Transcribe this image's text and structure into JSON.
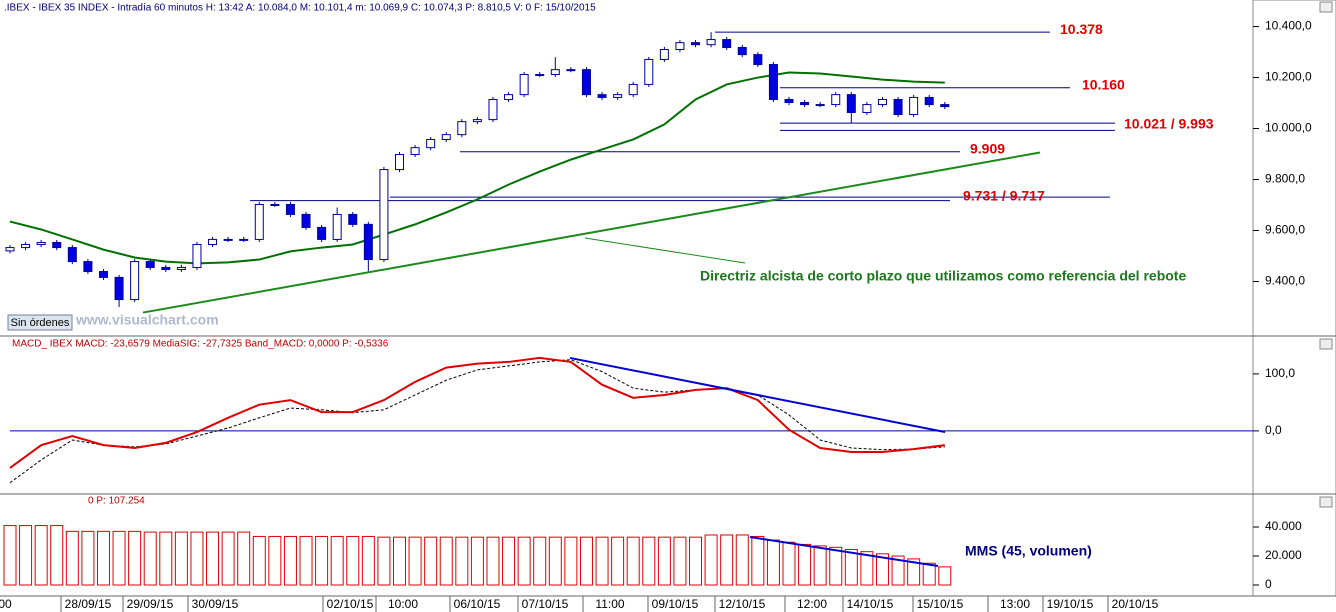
{
  "chart_data": {
    "type": "candlestick",
    "header": ".IBEX - IBEX 35 INDEX - Intradía 60 minutos  H: 13:42  A: 10.084,0  M: 10.101,4  m: 10.069,9  C: 10.074,3  P: 8.810,5  V: 0  F: 15/10/2015",
    "button": "Sin órdenes",
    "watermark": "www.visualchart.com",
    "x_labels": [
      "00",
      "28/09/15",
      "29/09/15",
      "30/09/15",
      "02/10/15",
      "10:00",
      "06/10/15",
      "07/10/15",
      "11:00",
      "09/10/15",
      "12/10/15",
      "12:00",
      "14/10/15",
      "15/10/15",
      "13:00",
      "19/10/15",
      "20/10/15"
    ],
    "up_color": "#ffffff",
    "down_color": "#0000e0",
    "wick_color": "#0000a0",
    "open": [
      9520,
      9533,
      9545,
      9553,
      9533,
      9478,
      9439,
      9416,
      9329,
      9478,
      9455,
      9447,
      9455,
      9545,
      9565,
      9565,
      9565,
      9702,
      9702,
      9663,
      9612,
      9565,
      9663,
      9624,
      9486,
      9839,
      9898,
      9925,
      9957,
      9976,
      10027,
      10035,
      10114,
      10133,
      10212,
      10212,
      10231,
      10231,
      10133,
      10122,
      10133,
      10173,
      10271,
      10310,
      10337,
      10329,
      10349,
      10318,
      10290,
      10251,
      10114,
      10102,
      10094,
      10094,
      10133,
      10063,
      10094,
      10114,
      10055,
      10122,
      10094
    ],
    "high": [
      9543,
      9555,
      9563,
      9563,
      9543,
      9488,
      9449,
      9426,
      9488,
      9488,
      9465,
      9465,
      9555,
      9575,
      9575,
      9575,
      9712,
      9712,
      9712,
      9673,
      9622,
      9690,
      9673,
      9634,
      9849,
      9908,
      9935,
      9967,
      9986,
      10037,
      10045,
      10124,
      10143,
      10222,
      10222,
      10280,
      10241,
      10241,
      10143,
      10143,
      10183,
      10281,
      10320,
      10347,
      10347,
      10378,
      10359,
      10328,
      10300,
      10261,
      10124,
      10112,
      10104,
      10143,
      10143,
      10104,
      10124,
      10124,
      10132,
      10132,
      10104
    ],
    "low": [
      9510,
      9523,
      9535,
      9523,
      9468,
      9429,
      9406,
      9300,
      9319,
      9445,
      9437,
      9437,
      9445,
      9535,
      9555,
      9555,
      9555,
      9692,
      9653,
      9602,
      9555,
      9555,
      9614,
      9440,
      9476,
      9829,
      9888,
      9915,
      9947,
      9966,
      10017,
      10025,
      10104,
      10123,
      10202,
      10202,
      10221,
      10123,
      10112,
      10112,
      10123,
      10163,
      10261,
      10300,
      10319,
      10319,
      10308,
      10280,
      10241,
      10104,
      10092,
      10084,
      10084,
      10084,
      10021,
      10053,
      10084,
      10045,
      10045,
      10084,
      10076
    ],
    "close": [
      9533,
      9545,
      9553,
      9533,
      9478,
      9439,
      9416,
      9329,
      9478,
      9455,
      9447,
      9455,
      9545,
      9565,
      9565,
      9565,
      9702,
      9702,
      9663,
      9612,
      9565,
      9663,
      9624,
      9486,
      9839,
      9898,
      9925,
      9957,
      9976,
      10027,
      10035,
      10114,
      10133,
      10212,
      10212,
      10231,
      10231,
      10133,
      10122,
      10133,
      10173,
      10271,
      10310,
      10337,
      10329,
      10349,
      10318,
      10290,
      10251,
      10114,
      10102,
      10094,
      10094,
      10133,
      10063,
      10094,
      10114,
      10055,
      10122,
      10094,
      10086
    ],
    "ylim": [
      9190,
      10465
    ],
    "yticks": [
      {
        "value": 9400,
        "label": "9.400,0"
      },
      {
        "value": 9600,
        "label": "9.600,0"
      },
      {
        "value": 9800,
        "label": "9.800,0"
      },
      {
        "value": 10000,
        "label": "10.000,0"
      },
      {
        "value": 10200,
        "label": "10.200,0"
      },
      {
        "value": 10400,
        "label": "10.400,0"
      }
    ],
    "ma": {
      "color": "#007000",
      "x": [
        0,
        2,
        4,
        6,
        8,
        10,
        12,
        14,
        16,
        18,
        20,
        22,
        24,
        26,
        28,
        30,
        32,
        34,
        36,
        38,
        40,
        42,
        44,
        46,
        48,
        50,
        52,
        54,
        56,
        58,
        60
      ],
      "values": [
        9635,
        9604,
        9565,
        9525,
        9494,
        9478,
        9471,
        9475,
        9486,
        9518,
        9533,
        9545,
        9584,
        9624,
        9671,
        9722,
        9780,
        9831,
        9878,
        9918,
        9957,
        10016,
        10114,
        10173,
        10200,
        10220,
        10216,
        10204,
        10192,
        10184,
        10180
      ]
    },
    "level_color": "#000080",
    "levels": [
      {
        "label": "10.378",
        "values": [
          10378
        ]
      },
      {
        "label": "10.160",
        "values": [
          10160
        ]
      },
      {
        "label": "10.021 / 9.993",
        "values": [
          10021,
          9993
        ]
      },
      {
        "label": "9.909",
        "values": [
          9909
        ]
      },
      {
        "label": "9.731 / 9.717",
        "values": [
          9731,
          9717
        ]
      }
    ],
    "trendline": {
      "color": "#1a8a1a",
      "values": [
        9278,
        9906
      ]
    },
    "annotation": "Directriz alcista de corto plazo que utilizamos como referencia del rebote",
    "macd": {
      "header": "MACD_ IBEX MACD: -23,6579 MediaSIG: -27,7325 Band_MACD: 0,0000  P: -0,5336",
      "ylim": [
        -109,
        163
      ],
      "yticks": [
        {
          "value": 100,
          "label": "100,0"
        },
        {
          "value": 0,
          "label": "0,0"
        }
      ],
      "x": [
        0,
        2,
        4,
        6,
        8,
        10,
        12,
        14,
        16,
        18,
        20,
        22,
        24,
        26,
        28,
        30,
        32,
        34,
        36,
        38,
        40,
        42,
        44,
        46,
        48,
        50,
        52,
        54,
        56,
        58,
        60
      ],
      "macd": {
        "color": "#e00000",
        "values": [
          -65,
          -25,
          -9,
          -25,
          -30,
          -21,
          -2,
          23,
          46,
          54,
          33,
          33,
          54,
          86,
          111,
          118,
          121,
          128,
          121,
          81,
          58,
          63,
          72,
          75,
          54,
          2,
          -30,
          -37,
          -37,
          -32,
          -25
        ]
      },
      "signal": {
        "color": "#000000",
        "values": [
          -91,
          -51,
          -16,
          -25,
          -28,
          -23,
          -9,
          5,
          23,
          40,
          37,
          32,
          37,
          63,
          89,
          107,
          114,
          121,
          125,
          104,
          75,
          68,
          72,
          75,
          63,
          28,
          -16,
          -30,
          -33,
          -32,
          -28
        ]
      },
      "trendline": {
        "color": "#0000d0",
        "values": [
          128,
          -2
        ]
      }
    },
    "volume": {
      "header": "0  P: 107.254",
      "label": "MMS (45, volumen)",
      "color": "#e00000",
      "ylim": [
        -6900,
        61400
      ],
      "yticks": [
        {
          "value": 40000,
          "label": "40.000"
        },
        {
          "value": 20000,
          "label": "20.000"
        },
        0
      ],
      "values": [
        41000,
        41000,
        41000,
        41000,
        37000,
        37000,
        37000,
        37000,
        37000,
        36500,
        36500,
        36500,
        36500,
        36500,
        36500,
        36500,
        33500,
        33500,
        33500,
        33500,
        33500,
        33500,
        33500,
        33500,
        33000,
        33000,
        33000,
        33000,
        33000,
        33000,
        33000,
        33000,
        33000,
        33000,
        33000,
        33000,
        33000,
        33000,
        33000,
        33000,
        33000,
        33000,
        33000,
        33000,
        33000,
        34500,
        34500,
        34500,
        33500,
        31000,
        29500,
        28000,
        27000,
        26000,
        24500,
        23000,
        21500,
        20000,
        18000,
        15000,
        12500
      ],
      "trendline": {
        "color": "#0000d0",
        "values": [
          33100,
          13100
        ]
      }
    }
  }
}
